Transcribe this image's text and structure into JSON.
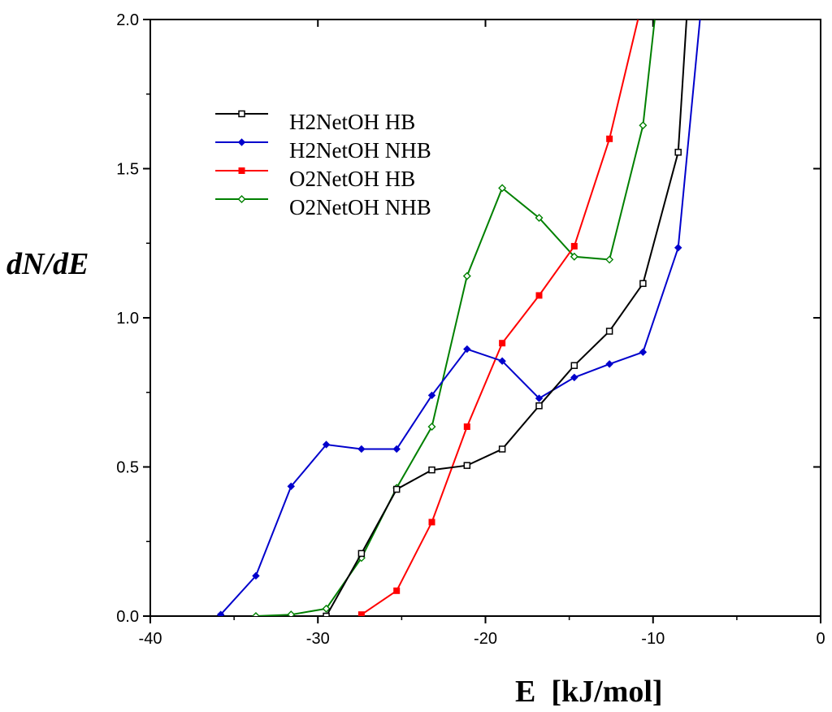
{
  "chart_data": {
    "type": "line",
    "title": "",
    "xlabel": "E  [kJ/mol]",
    "ylabel": "dN/dE",
    "xlim": [
      -40,
      0
    ],
    "ylim": [
      0,
      2.0
    ],
    "xticks": [
      -40,
      -30,
      -20,
      -10,
      0
    ],
    "xtick_labels": [
      "-40",
      "-30",
      "-20",
      "-10",
      "0"
    ],
    "yticks": [
      0,
      0.5,
      1.0,
      1.5,
      2.0
    ],
    "ytick_labels": [
      "0.0",
      "0.5",
      "1.0",
      "1.5",
      "2.0"
    ],
    "grid": false,
    "legend_position": "upper-left",
    "series": [
      {
        "name": "H2NetOH HB",
        "color": "#000000",
        "marker": "open-square",
        "x": [
          -29.5,
          -27.4,
          -25.3,
          -23.2,
          -21.1,
          -19.0,
          -16.8,
          -14.7,
          -12.6,
          -10.6,
          -8.5,
          -8.0
        ],
        "y": [
          0.0,
          0.21,
          0.425,
          0.49,
          0.505,
          0.56,
          0.705,
          0.84,
          0.955,
          1.115,
          1.555,
          2.0
        ]
      },
      {
        "name": "H2NetOH NHB",
        "color": "#0000cc",
        "marker": "filled-diamond",
        "x": [
          -35.8,
          -33.7,
          -31.6,
          -29.5,
          -27.4,
          -25.3,
          -23.2,
          -21.1,
          -19.0,
          -16.8,
          -14.7,
          -12.6,
          -10.6,
          -8.5,
          -7.2
        ],
        "y": [
          0.005,
          0.135,
          0.435,
          0.575,
          0.56,
          0.56,
          0.74,
          0.895,
          0.855,
          0.73,
          0.8,
          0.845,
          0.885,
          1.235,
          2.0
        ]
      },
      {
        "name": "O2NetOH HB",
        "color": "#ff0000",
        "marker": "filled-square",
        "x": [
          -27.4,
          -25.3,
          -23.2,
          -21.1,
          -19.0,
          -16.8,
          -14.7,
          -12.6,
          -10.9
        ],
        "y": [
          0.005,
          0.085,
          0.315,
          0.635,
          0.915,
          1.075,
          1.24,
          1.6,
          2.0
        ]
      },
      {
        "name": "O2NetOH NHB",
        "color": "#008000",
        "marker": "open-diamond",
        "x": [
          -33.7,
          -31.6,
          -29.5,
          -27.4,
          -25.3,
          -23.2,
          -21.1,
          -19.0,
          -16.8,
          -14.7,
          -12.6,
          -10.6,
          -9.9
        ],
        "y": [
          0.0,
          0.005,
          0.025,
          0.195,
          0.43,
          0.635,
          1.14,
          1.435,
          1.335,
          1.205,
          1.195,
          1.645,
          2.0
        ]
      }
    ]
  }
}
